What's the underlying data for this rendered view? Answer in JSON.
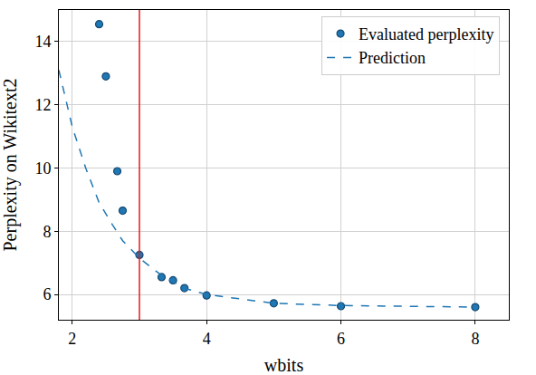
{
  "chart_data": {
    "type": "scatter",
    "x_label": "wbits",
    "y_label": "Perplexity on Wikitext2",
    "xlim": [
      1.8,
      8.5
    ],
    "ylim": [
      5.2,
      15
    ],
    "xticks": [
      2,
      4,
      6,
      8
    ],
    "yticks": [
      6,
      8,
      10,
      12,
      14
    ],
    "grid": true,
    "legend": "upper right",
    "series": [
      {
        "name": "Evaluated perplexity",
        "type": "scatter",
        "marker": "circle",
        "color": "#1f77b4",
        "x": [
          2.4,
          2.5,
          2.67,
          2.75,
          3.0,
          3.33,
          3.5,
          3.67,
          4.0,
          5.0,
          6.0,
          8.0
        ],
        "values": [
          14.55,
          12.9,
          9.9,
          8.65,
          7.25,
          6.55,
          6.45,
          6.2,
          5.97,
          5.72,
          5.63,
          5.6
        ]
      },
      {
        "name": "Prediction",
        "type": "line",
        "line_style": "dashed",
        "color": "#1f77b4",
        "x": [
          1.8,
          2.0,
          2.2,
          2.4,
          2.6,
          2.75,
          3.0,
          3.33,
          3.5,
          3.67,
          4.0,
          5.0,
          6.0,
          8.0
        ],
        "values": [
          13.1,
          11.3,
          10.0,
          8.9,
          8.2,
          7.7,
          7.15,
          6.6,
          6.4,
          6.2,
          6.0,
          5.72,
          5.65,
          5.6
        ]
      }
    ],
    "vlines": [
      {
        "x": 3,
        "color": "#e41a1c"
      }
    ]
  }
}
